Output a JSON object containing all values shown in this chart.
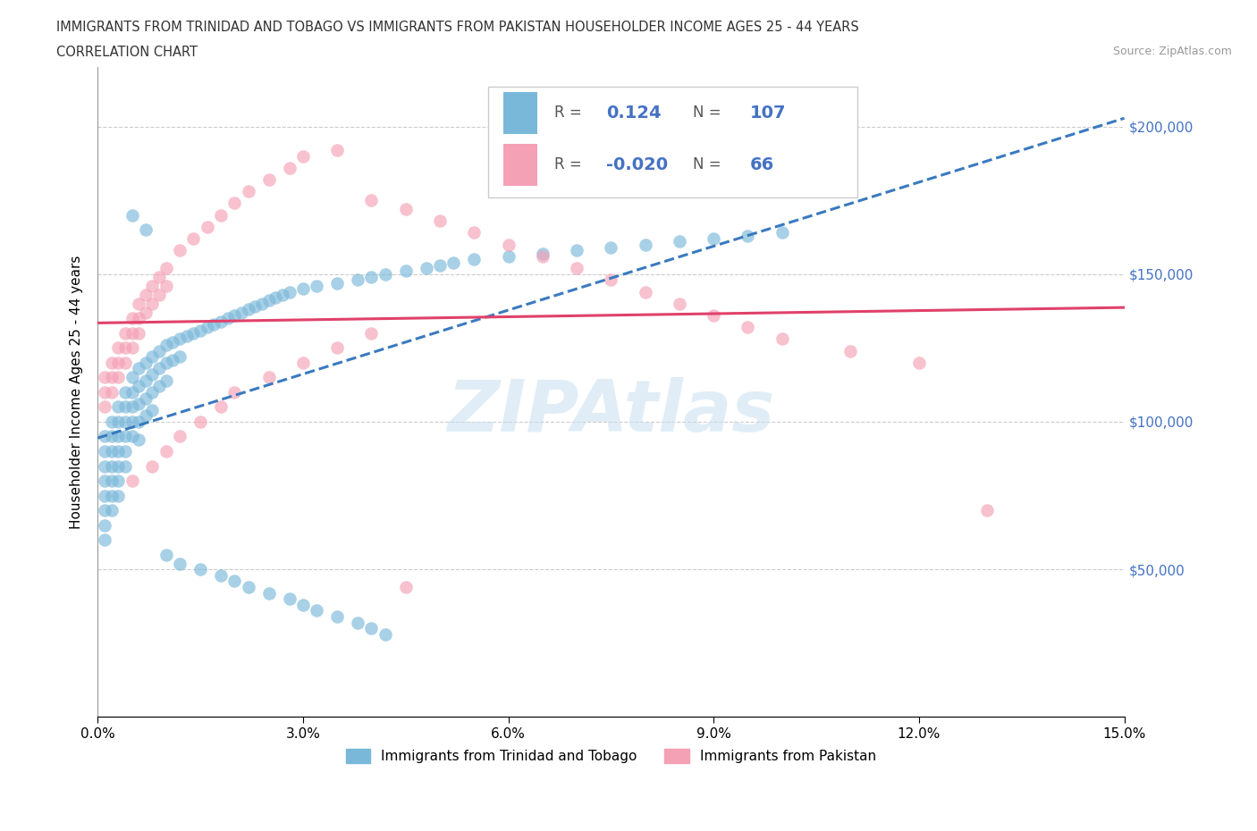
{
  "title_line1": "IMMIGRANTS FROM TRINIDAD AND TOBAGO VS IMMIGRANTS FROM PAKISTAN HOUSEHOLDER INCOME AGES 25 - 44 YEARS",
  "title_line2": "CORRELATION CHART",
  "source_text": "Source: ZipAtlas.com",
  "ylabel": "Householder Income Ages 25 - 44 years",
  "xlim": [
    0.0,
    0.15
  ],
  "ylim": [
    0,
    220000
  ],
  "xticks": [
    0.0,
    0.03,
    0.06,
    0.09,
    0.12,
    0.15
  ],
  "xticklabels": [
    "0.0%",
    "3.0%",
    "6.0%",
    "9.0%",
    "12.0%",
    "15.0%"
  ],
  "ytick_positions": [
    0,
    50000,
    100000,
    150000,
    200000
  ],
  "ytick_labels": [
    "",
    "$50,000",
    "$100,000",
    "$150,000",
    "$200,000"
  ],
  "color_blue": "#7ab8d9",
  "color_pink": "#f4a0b5",
  "color_blue_line": "#3a7abf",
  "color_pink_line": "#e0416a",
  "watermark": "ZIPAtlas",
  "legend_label1": "Immigrants from Trinidad and Tobago",
  "legend_label2": "Immigrants from Pakistan",
  "blue_scatter_x": [
    0.001,
    0.001,
    0.001,
    0.001,
    0.001,
    0.001,
    0.001,
    0.001,
    0.002,
    0.002,
    0.002,
    0.002,
    0.002,
    0.002,
    0.002,
    0.003,
    0.003,
    0.003,
    0.003,
    0.003,
    0.003,
    0.003,
    0.004,
    0.004,
    0.004,
    0.004,
    0.004,
    0.004,
    0.005,
    0.005,
    0.005,
    0.005,
    0.005,
    0.006,
    0.006,
    0.006,
    0.006,
    0.006,
    0.007,
    0.007,
    0.007,
    0.007,
    0.008,
    0.008,
    0.008,
    0.008,
    0.009,
    0.009,
    0.009,
    0.01,
    0.01,
    0.01,
    0.011,
    0.011,
    0.012,
    0.012,
    0.013,
    0.014,
    0.015,
    0.016,
    0.017,
    0.018,
    0.019,
    0.02,
    0.021,
    0.022,
    0.023,
    0.024,
    0.025,
    0.026,
    0.027,
    0.028,
    0.03,
    0.032,
    0.035,
    0.038,
    0.04,
    0.042,
    0.045,
    0.048,
    0.05,
    0.052,
    0.055,
    0.06,
    0.065,
    0.07,
    0.075,
    0.08,
    0.085,
    0.09,
    0.095,
    0.1,
    0.01,
    0.012,
    0.015,
    0.018,
    0.02,
    0.022,
    0.025,
    0.028,
    0.03,
    0.032,
    0.035,
    0.038,
    0.04,
    0.042,
    0.005,
    0.007
  ],
  "blue_scatter_y": [
    95000,
    90000,
    85000,
    80000,
    75000,
    70000,
    65000,
    60000,
    100000,
    95000,
    90000,
    85000,
    80000,
    75000,
    70000,
    105000,
    100000,
    95000,
    90000,
    85000,
    80000,
    75000,
    110000,
    105000,
    100000,
    95000,
    90000,
    85000,
    115000,
    110000,
    105000,
    100000,
    95000,
    118000,
    112000,
    106000,
    100000,
    94000,
    120000,
    114000,
    108000,
    102000,
    122000,
    116000,
    110000,
    104000,
    124000,
    118000,
    112000,
    126000,
    120000,
    114000,
    127000,
    121000,
    128000,
    122000,
    129000,
    130000,
    131000,
    132000,
    133000,
    134000,
    135000,
    136000,
    137000,
    138000,
    139000,
    140000,
    141000,
    142000,
    143000,
    144000,
    145000,
    146000,
    147000,
    148000,
    149000,
    150000,
    151000,
    152000,
    153000,
    154000,
    155000,
    156000,
    157000,
    158000,
    159000,
    160000,
    161000,
    162000,
    163000,
    164000,
    55000,
    52000,
    50000,
    48000,
    46000,
    44000,
    42000,
    40000,
    38000,
    36000,
    34000,
    32000,
    30000,
    28000,
    170000,
    165000
  ],
  "pink_scatter_x": [
    0.001,
    0.001,
    0.001,
    0.002,
    0.002,
    0.002,
    0.003,
    0.003,
    0.003,
    0.004,
    0.004,
    0.004,
    0.005,
    0.005,
    0.005,
    0.006,
    0.006,
    0.006,
    0.007,
    0.007,
    0.008,
    0.008,
    0.009,
    0.009,
    0.01,
    0.01,
    0.012,
    0.014,
    0.016,
    0.018,
    0.02,
    0.022,
    0.025,
    0.028,
    0.03,
    0.035,
    0.04,
    0.045,
    0.05,
    0.055,
    0.06,
    0.065,
    0.07,
    0.075,
    0.08,
    0.085,
    0.09,
    0.095,
    0.1,
    0.11,
    0.12,
    0.13,
    0.005,
    0.008,
    0.01,
    0.012,
    0.015,
    0.018,
    0.02,
    0.025,
    0.03,
    0.035,
    0.04,
    0.045
  ],
  "pink_scatter_y": [
    115000,
    110000,
    105000,
    120000,
    115000,
    110000,
    125000,
    120000,
    115000,
    130000,
    125000,
    120000,
    135000,
    130000,
    125000,
    140000,
    135000,
    130000,
    143000,
    137000,
    146000,
    140000,
    149000,
    143000,
    152000,
    146000,
    158000,
    162000,
    166000,
    170000,
    174000,
    178000,
    182000,
    186000,
    190000,
    192000,
    175000,
    172000,
    168000,
    164000,
    160000,
    156000,
    152000,
    148000,
    144000,
    140000,
    136000,
    132000,
    128000,
    124000,
    120000,
    70000,
    80000,
    85000,
    90000,
    95000,
    100000,
    105000,
    110000,
    115000,
    120000,
    125000,
    130000,
    44000
  ]
}
